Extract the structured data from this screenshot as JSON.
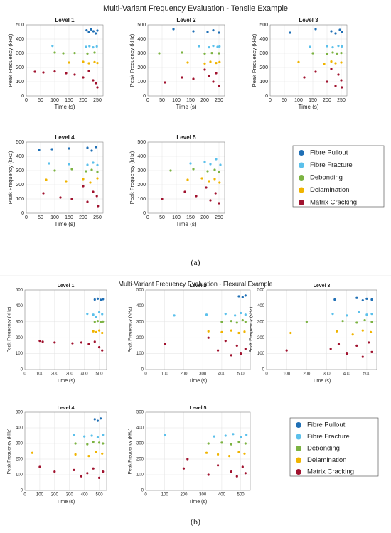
{
  "figures": [
    {
      "title": "Multi-Variant Frequency Evaluation - Tensile Example",
      "caption": "(a)",
      "legend": [
        {
          "name": "Fibre Pullout",
          "color": "#1f6fb5"
        },
        {
          "name": "Fibre Fracture",
          "color": "#5bc0eb"
        },
        {
          "name": "Debonding",
          "color": "#7cb342"
        },
        {
          "name": "Delamination",
          "color": "#f0b400"
        },
        {
          "name": "Matrix Cracking",
          "color": "#a0122e"
        }
      ]
    },
    {
      "title": "Multi-Variant Frequency Evaluation - Flexural Example",
      "caption": "(b)",
      "legend": [
        {
          "name": "Fibre Pullout",
          "color": "#1f6fb5"
        },
        {
          "name": "Fibre Fracture",
          "color": "#5bc0eb"
        },
        {
          "name": "Debonding",
          "color": "#7cb342"
        },
        {
          "name": "Delamination",
          "color": "#f0b400"
        },
        {
          "name": "Matrix Cracking",
          "color": "#a0122e"
        }
      ]
    }
  ],
  "chart_data": [
    {
      "type": "scatter",
      "title": "Level 1",
      "xlabel": "Time (s)",
      "ylabel": "Peak Frequency (kHz)",
      "xlim": [
        0,
        270
      ],
      "xticks": [
        0,
        50,
        100,
        150,
        200,
        250
      ],
      "ylim": [
        0,
        500
      ],
      "yticks": [
        0,
        100,
        200,
        300,
        400,
        500
      ],
      "grid": true,
      "series": [
        {
          "x": [
            212,
            220,
            228,
            236,
            244,
            250
          ],
          "values": [
            462,
            450,
            468,
            455,
            440,
            460
          ]
        },
        {
          "x": [
            92,
            210,
            222,
            235,
            248
          ],
          "values": [
            352,
            345,
            350,
            342,
            348
          ]
        },
        {
          "x": [
            100,
            130,
            170,
            215,
            240
          ],
          "values": [
            305,
            300,
            302,
            298,
            305
          ]
        },
        {
          "x": [
            150,
            200,
            220,
            240,
            250
          ],
          "values": [
            235,
            240,
            230,
            238,
            232
          ]
        },
        {
          "x": [
            30,
            60,
            100,
            140,
            170,
            200,
            220,
            235,
            245,
            250
          ],
          "values": [
            170,
            165,
            172,
            160,
            150,
            130,
            175,
            110,
            90,
            60
          ]
        }
      ]
    },
    {
      "type": "scatter",
      "title": "Level 2",
      "xlabel": "Time (s)",
      "ylabel": "Peak Frequency (kHz)",
      "xlim": [
        0,
        270
      ],
      "xticks": [
        0,
        50,
        100,
        150,
        200,
        250
      ],
      "ylim": [
        0,
        500
      ],
      "yticks": [
        0,
        100,
        200,
        300,
        400,
        500
      ],
      "grid": true,
      "series": [
        {
          "x": [
            90,
            160,
            210,
            230,
            250
          ],
          "values": [
            470,
            455,
            450,
            462,
            445
          ]
        },
        {
          "x": [
            180,
            215,
            230,
            245,
            252
          ],
          "values": [
            350,
            342,
            352,
            345,
            348
          ]
        },
        {
          "x": [
            40,
            120,
            200,
            225,
            250
          ],
          "values": [
            300,
            305,
            298,
            302,
            300
          ]
        },
        {
          "x": [
            140,
            200,
            220,
            240,
            252
          ],
          "values": [
            235,
            228,
            240,
            232,
            238
          ]
        },
        {
          "x": [
            60,
            120,
            160,
            200,
            215,
            230,
            240,
            250
          ],
          "values": [
            95,
            130,
            120,
            185,
            140,
            100,
            160,
            70
          ]
        }
      ]
    },
    {
      "type": "scatter",
      "title": "Level 3",
      "xlabel": "Time (s)",
      "ylabel": "Peak Frequency (kHz)",
      "xlim": [
        0,
        270
      ],
      "xticks": [
        0,
        50,
        100,
        150,
        200,
        250
      ],
      "ylim": [
        0,
        500
      ],
      "yticks": [
        0,
        100,
        200,
        300,
        400,
        500
      ],
      "grid": true,
      "series": [
        {
          "x": [
            70,
            160,
            215,
            230,
            245,
            252
          ],
          "values": [
            445,
            470,
            455,
            440,
            465,
            450
          ]
        },
        {
          "x": [
            140,
            200,
            220,
            240,
            252
          ],
          "values": [
            345,
            350,
            342,
            352,
            348
          ]
        },
        {
          "x": [
            150,
            200,
            220,
            235,
            250
          ],
          "values": [
            300,
            295,
            305,
            298,
            302
          ]
        },
        {
          "x": [
            100,
            190,
            215,
            230,
            250
          ],
          "values": [
            238,
            225,
            242,
            230,
            235
          ]
        },
        {
          "x": [
            120,
            160,
            200,
            215,
            230,
            240,
            250,
            252
          ],
          "values": [
            130,
            170,
            100,
            190,
            70,
            150,
            110,
            60
          ]
        }
      ]
    },
    {
      "type": "scatter",
      "title": "Level 4",
      "xlabel": "Time (s)",
      "ylabel": "Peak Frequency (kHz)",
      "xlim": [
        0,
        270
      ],
      "xticks": [
        0,
        50,
        100,
        150,
        200,
        250
      ],
      "ylim": [
        0,
        500
      ],
      "yticks": [
        0,
        100,
        200,
        300,
        400,
        500
      ],
      "grid": true,
      "series": [
        {
          "x": [
            45,
            90,
            150,
            215,
            230,
            245
          ],
          "values": [
            445,
            450,
            455,
            460,
            440,
            465
          ]
        },
        {
          "x": [
            80,
            150,
            215,
            235,
            250
          ],
          "values": [
            350,
            345,
            340,
            355,
            338
          ]
        },
        {
          "x": [
            100,
            160,
            210,
            230,
            250
          ],
          "values": [
            300,
            310,
            295,
            305,
            290
          ]
        },
        {
          "x": [
            70,
            140,
            200,
            225,
            250
          ],
          "values": [
            235,
            225,
            240,
            215,
            245
          ]
        },
        {
          "x": [
            60,
            120,
            160,
            200,
            215,
            235,
            248,
            252
          ],
          "values": [
            140,
            110,
            100,
            190,
            80,
            150,
            120,
            50
          ]
        }
      ]
    },
    {
      "type": "scatter",
      "title": "Level 5",
      "xlabel": "Time (s)",
      "ylabel": "Peak Frequency (kHz)",
      "xlim": [
        0,
        270
      ],
      "xticks": [
        0,
        50,
        100,
        150,
        200,
        250
      ],
      "ylim": [
        0,
        500
      ],
      "yticks": [
        0,
        100,
        200,
        300,
        400,
        500
      ],
      "grid": true,
      "series": [
        {
          "x": [],
          "values": []
        },
        {
          "x": [
            150,
            200,
            220,
            240,
            255
          ],
          "values": [
            350,
            360,
            345,
            380,
            340
          ]
        },
        {
          "x": [
            80,
            160,
            210,
            235,
            250
          ],
          "values": [
            300,
            310,
            295,
            305,
            290
          ]
        },
        {
          "x": [
            140,
            190,
            215,
            235,
            252
          ],
          "values": [
            235,
            245,
            225,
            240,
            215
          ]
        },
        {
          "x": [
            50,
            130,
            170,
            205,
            220,
            238,
            250
          ],
          "values": [
            100,
            150,
            120,
            180,
            90,
            140,
            70
          ]
        }
      ]
    },
    {
      "type": "scatter",
      "title": "Level 1",
      "xlabel": "Time (s)",
      "ylabel": "Peak Frequency (kHz)",
      "xlim": [
        0,
        550
      ],
      "xticks": [
        0,
        100,
        200,
        300,
        400,
        500
      ],
      "ylim": [
        0,
        500
      ],
      "yticks": [
        0,
        100,
        200,
        300,
        400,
        500
      ],
      "grid": true,
      "series": [
        {
          "x": [
            470,
            490,
            510,
            525
          ],
          "values": [
            440,
            445,
            438,
            442
          ]
        },
        {
          "x": [
            420,
            460,
            480,
            500,
            520
          ],
          "values": [
            350,
            345,
            330,
            360,
            348
          ]
        },
        {
          "x": [
            470,
            490,
            510,
            525
          ],
          "values": [
            300,
            305,
            298,
            302
          ]
        },
        {
          "x": [
            460,
            480,
            500,
            520
          ],
          "values": [
            240,
            235,
            245,
            230
          ]
        },
        {
          "x": [
            100,
            120,
            200,
            320,
            380,
            430,
            470,
            500,
            520
          ],
          "values": [
            180,
            175,
            170,
            165,
            170,
            160,
            175,
            140,
            120
          ]
        }
      ]
    },
    {
      "type": "scatter",
      "title": "Level 2",
      "xlabel": "Time (s)",
      "ylabel": "Peak Frequency (kHz)",
      "xlim": [
        0,
        550
      ],
      "xticks": [
        0,
        100,
        200,
        300,
        400,
        500
      ],
      "ylim": [
        0,
        500
      ],
      "yticks": [
        0,
        100,
        200,
        300,
        400,
        500
      ],
      "grid": true,
      "series": [
        {
          "x": [
            490,
            510,
            525
          ],
          "values": [
            460,
            455,
            465
          ]
        },
        {
          "x": [
            150,
            320,
            420,
            470,
            500,
            525
          ],
          "values": [
            340,
            345,
            350,
            340,
            355,
            345
          ]
        },
        {
          "x": [
            400,
            450,
            480,
            510,
            525
          ],
          "values": [
            300,
            305,
            295,
            310,
            300
          ]
        },
        {
          "x": [
            330,
            400,
            450,
            490,
            520
          ],
          "values": [
            240,
            235,
            245,
            230,
            238
          ]
        },
        {
          "x": [
            100,
            330,
            380,
            420,
            450,
            480,
            500,
            525
          ],
          "values": [
            160,
            200,
            120,
            180,
            90,
            150,
            100,
            130
          ]
        }
      ]
    },
    {
      "type": "scatter",
      "title": "Level 3",
      "xlabel": "Time (s)",
      "ylabel": "Peak Frequency (kHz)",
      "xlim": [
        0,
        550
      ],
      "xticks": [
        0,
        100,
        200,
        300,
        400,
        500
      ],
      "ylim": [
        0,
        500
      ],
      "yticks": [
        0,
        100,
        200,
        300,
        400,
        500
      ],
      "grid": true,
      "series": [
        {
          "x": [
            340,
            450,
            480,
            500,
            525
          ],
          "values": [
            440,
            450,
            435,
            445,
            440
          ]
        },
        {
          "x": [
            330,
            400,
            460,
            500,
            525
          ],
          "values": [
            350,
            340,
            360,
            345,
            350
          ]
        },
        {
          "x": [
            200,
            380,
            450,
            490,
            525
          ],
          "values": [
            300,
            305,
            295,
            310,
            300
          ]
        },
        {
          "x": [
            120,
            350,
            430,
            480,
            520
          ],
          "values": [
            230,
            240,
            220,
            245,
            235
          ]
        },
        {
          "x": [
            100,
            320,
            360,
            400,
            450,
            480,
            510,
            525
          ],
          "values": [
            120,
            130,
            160,
            100,
            150,
            80,
            170,
            110
          ]
        }
      ]
    },
    {
      "type": "scatter",
      "title": "Level 4",
      "xlabel": "Time (s)",
      "ylabel": "Peak Frequency (kHz)",
      "xlim": [
        0,
        550
      ],
      "xticks": [
        0,
        100,
        200,
        300,
        400,
        500
      ],
      "ylim": [
        0,
        500
      ],
      "yticks": [
        0,
        100,
        200,
        300,
        400,
        500
      ],
      "grid": true,
      "series": [
        {
          "x": [
            470,
            490,
            510
          ],
          "values": [
            455,
            445,
            460
          ]
        },
        {
          "x": [
            330,
            400,
            450,
            490,
            525
          ],
          "values": [
            355,
            345,
            350,
            340,
            355
          ]
        },
        {
          "x": [
            340,
            420,
            460,
            500,
            525
          ],
          "values": [
            300,
            295,
            310,
            305,
            300
          ]
        },
        {
          "x": [
            50,
            340,
            430,
            480,
            520
          ],
          "values": [
            240,
            230,
            220,
            245,
            235
          ]
        },
        {
          "x": [
            100,
            200,
            330,
            380,
            420,
            460,
            500,
            525
          ],
          "values": [
            150,
            120,
            130,
            90,
            110,
            140,
            80,
            120
          ]
        }
      ]
    },
    {
      "type": "scatter",
      "title": "Level 5",
      "xlabel": "Time (s)",
      "ylabel": "Peak Frequency (kHz)",
      "xlim": [
        0,
        550
      ],
      "xticks": [
        0,
        100,
        200,
        300,
        400,
        500
      ],
      "ylim": [
        0,
        500
      ],
      "yticks": [
        0,
        100,
        200,
        300,
        400,
        500
      ],
      "grid": true,
      "series": [
        {
          "x": [],
          "values": []
        },
        {
          "x": [
            100,
            360,
            420,
            460,
            500,
            530
          ],
          "values": [
            355,
            345,
            350,
            360,
            340,
            355
          ]
        },
        {
          "x": [
            330,
            400,
            450,
            490,
            525
          ],
          "values": [
            300,
            305,
            295,
            310,
            300
          ]
        },
        {
          "x": [
            320,
            380,
            440,
            490,
            520
          ],
          "values": [
            240,
            230,
            220,
            245,
            235
          ]
        },
        {
          "x": [
            200,
            220,
            330,
            380,
            450,
            480,
            510,
            525
          ],
          "values": [
            140,
            200,
            100,
            160,
            120,
            90,
            150,
            110
          ]
        }
      ]
    }
  ]
}
